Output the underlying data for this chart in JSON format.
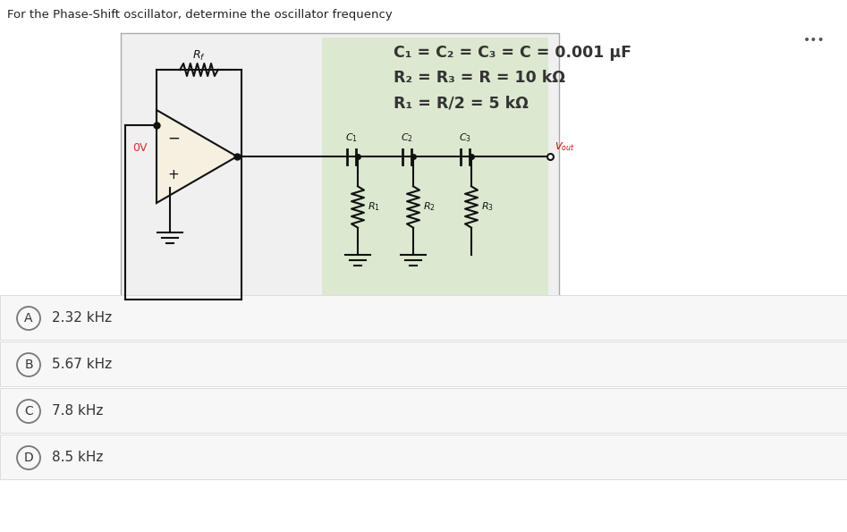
{
  "title": "For the Phase-Shift oscillator, determine the oscillator frequency",
  "formula_line1": "C₁ = C₂ = C₃ = C = 0.001 μF",
  "formula_line2": "R₂ = R₃ = R = 10 kΩ",
  "formula_line3": "R₁ = R/2 = 5 kΩ",
  "choices": [
    "A",
    "B",
    "C",
    "D"
  ],
  "answers": [
    "2.32 kHz",
    "5.67 kHz",
    "7.8 kHz",
    "8.5 kHz"
  ],
  "bg_color": "#f0f0f0",
  "circuit_bg": "#dde8d0",
  "white_bg": "#ffffff",
  "opamp_fill": "#f5f0e0",
  "title_color": "#222222",
  "text_color": "#333333",
  "circuit_color": "#111111",
  "red_color": "#cc0000",
  "answer_sep_color": "#dddddd",
  "answer_bg": "#f7f7f7",
  "dots_color": "#555555",
  "ov_color": "#cc3333",
  "vout_color": "#cc0000"
}
